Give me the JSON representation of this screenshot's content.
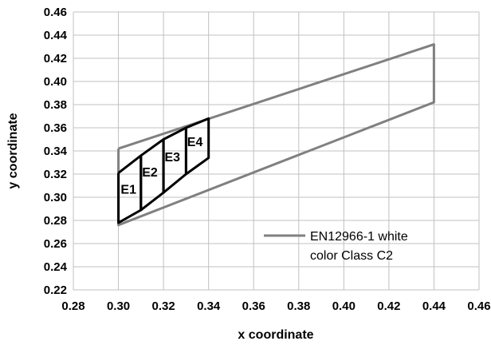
{
  "chart_data": {
    "type": "line",
    "title": "",
    "xlabel": "x coordinate",
    "ylabel": "y coordinate",
    "xlim": [
      0.28,
      0.46
    ],
    "ylim": [
      0.22,
      0.46
    ],
    "xticks": [
      "0.28",
      "0.30",
      "0.32",
      "0.34",
      "0.36",
      "0.38",
      "0.40",
      "0.42",
      "0.44",
      "0.46"
    ],
    "yticks": [
      "0.22",
      "0.24",
      "0.26",
      "0.28",
      "0.30",
      "0.32",
      "0.34",
      "0.36",
      "0.38",
      "0.40",
      "0.42",
      "0.44",
      "0.46"
    ],
    "grid": true,
    "legend_position": "bottom-right",
    "series": [
      {
        "name": "EN12966-1 white color Class C2",
        "legend_lines": [
          "EN12966-1 white",
          "color Class C2"
        ],
        "color": "#808080",
        "x": [
          0.3,
          0.44,
          0.44,
          0.3,
          0.3
        ],
        "y": [
          0.342,
          0.432,
          0.382,
          0.276,
          0.342
        ]
      }
    ],
    "regions": [
      {
        "label": "E1",
        "label_at": [
          0.301,
          0.303
        ],
        "color": "#000000",
        "x": [
          0.3,
          0.31,
          0.31,
          0.3,
          0.3
        ],
        "y": [
          0.321,
          0.336,
          0.289,
          0.278,
          0.321
        ]
      },
      {
        "label": "E2",
        "label_at": [
          0.3105,
          0.318
        ],
        "color": "#000000",
        "x": [
          0.31,
          0.32,
          0.32,
          0.31,
          0.31
        ],
        "y": [
          0.336,
          0.35,
          0.304,
          0.289,
          0.336
        ]
      },
      {
        "label": "E3",
        "label_at": [
          0.3205,
          0.331
        ],
        "color": "#000000",
        "x": [
          0.32,
          0.33,
          0.33,
          0.32,
          0.32
        ],
        "y": [
          0.35,
          0.36,
          0.32,
          0.304,
          0.35
        ]
      },
      {
        "label": "E4",
        "label_at": [
          0.3305,
          0.344
        ],
        "color": "#000000",
        "x": [
          0.33,
          0.34,
          0.34,
          0.33,
          0.33
        ],
        "y": [
          0.36,
          0.368,
          0.334,
          0.32,
          0.36
        ]
      }
    ]
  }
}
